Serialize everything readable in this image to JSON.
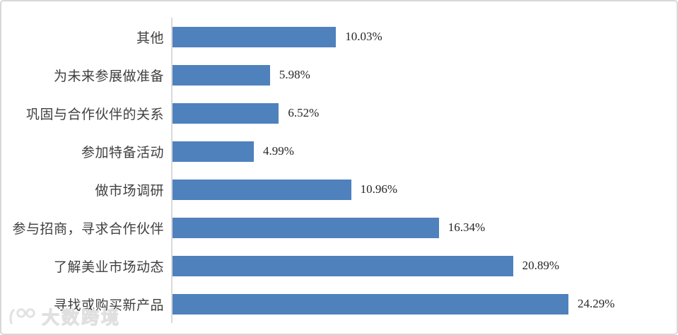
{
  "watermark": {
    "logo": "100",
    "brand": "大数跨境"
  },
  "chart_data": {
    "type": "bar",
    "orientation": "horizontal",
    "title": "",
    "xlabel": "",
    "ylabel": "",
    "legend": null,
    "grid": false,
    "value_axis_visible": false,
    "category_axis_line_color": "#d9d9d9",
    "bar_color": "#4f81bd",
    "category_label_color": "#3f3f3f",
    "value_label_color": "#262626",
    "categories": [
      "其他",
      "为未来参展做准备",
      "巩固与合作伙伴的关系",
      "参加特备活动",
      "做市场调研",
      "参与招商，寻求合作伙伴",
      "了解美业市场动态",
      "寻找或购买新产品"
    ],
    "values": [
      10.03,
      5.98,
      6.52,
      4.99,
      10.96,
      16.34,
      20.89,
      24.29
    ],
    "value_labels": [
      "10.03%",
      "5.98%",
      "6.52%",
      "4.99%",
      "10.96%",
      "16.34%",
      "20.89%",
      "24.29%"
    ]
  }
}
